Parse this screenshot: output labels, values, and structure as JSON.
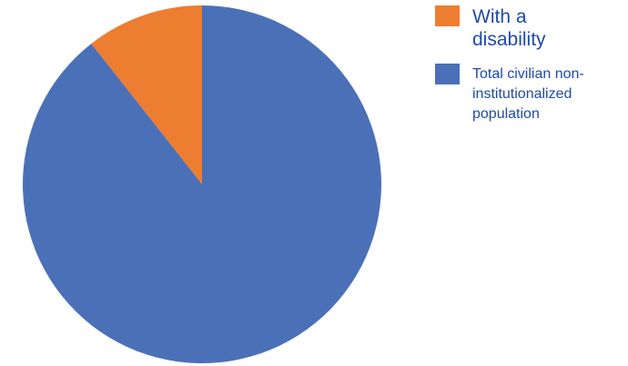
{
  "chart_data": {
    "type": "pie",
    "title": "",
    "slices": [
      {
        "label": "With a disability",
        "value": 10.6,
        "color": "#ED7D31"
      },
      {
        "label": "Total civilian non-institutionalized population",
        "value": 89.4,
        "color": "#4A70B8"
      }
    ],
    "legend_position": "top-right",
    "start_angle": "12 o'clock",
    "direction": "counterclockwise"
  },
  "legend": {
    "items": [
      {
        "label": "With a disability",
        "color": "#ED7D31"
      },
      {
        "label": "Total civilian non-institutionalized population",
        "color": "#4A70B8"
      }
    ]
  }
}
